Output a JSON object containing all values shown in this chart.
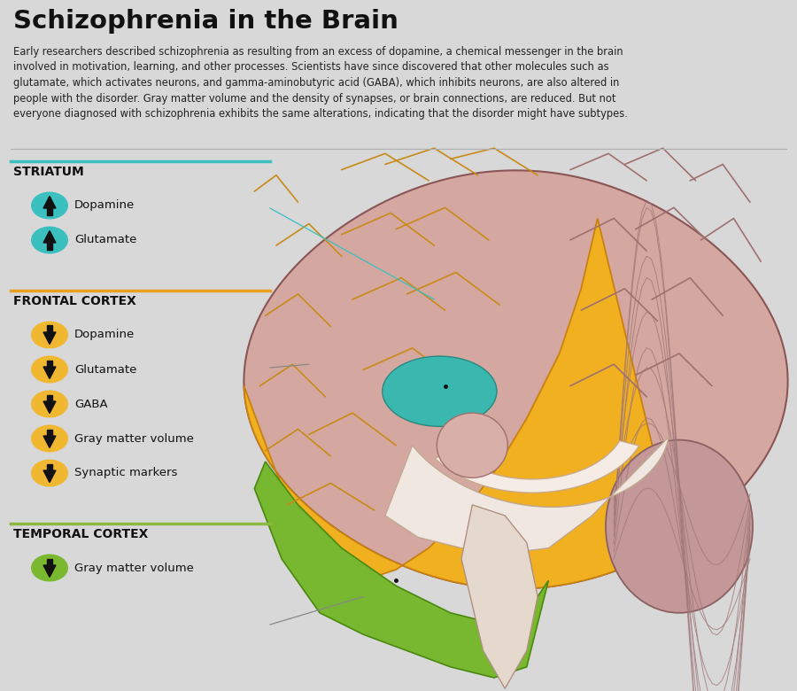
{
  "title": "Schizophrenia in the Brain",
  "body_text": "Early researchers described schizophrenia as resulting from an excess of dopamine, a chemical messenger in the brain\ninvolved in motivation, learning, and other processes. Scientists have since discovered that other molecules such as\nglutamate, which activates neurons, and gamma-aminobutyric acid (GABA), which inhibits neurons, are also altered in\npeople with the disorder. Gray matter volume and the density of synapses, or brain connections, are reduced. But not\neveryone diagnosed with schizophrenia exhibits the same alterations, indicating that the disorder might have subtypes.",
  "bg_color": "#d8d8d8",
  "title_color": "#111111",
  "body_color": "#222222",
  "sections": [
    {
      "name": "STRIATUM",
      "line_color": "#3bbfbf",
      "icon_color": "#3bbfbf",
      "arrow_up": true,
      "items": [
        "Dopamine",
        "Glutamate"
      ]
    },
    {
      "name": "FRONTAL CORTEX",
      "line_color": "#e8a020",
      "icon_color": "#f0b830",
      "arrow_up": false,
      "items": [
        "Dopamine",
        "Glutamate",
        "GABA",
        "Gray matter volume",
        "Synaptic markers"
      ]
    },
    {
      "name": "TEMPORAL CORTEX",
      "line_color": "#8ab840",
      "icon_color": "#7ab830",
      "arrow_up": false,
      "items": [
        "Gray matter volume"
      ]
    }
  ],
  "brain_colors": {
    "frontal_orange": "#f0b020",
    "frontal_edge": "#c88010",
    "temporal_green": "#78b830",
    "temporal_edge": "#4a8810",
    "striatum_teal": "#3ab8b0",
    "striatum_edge": "#2a8880",
    "other_pink": "#d4a8a0",
    "pink_edge": "#8a5555",
    "inner_white": "#f0e8e0",
    "inner_edge": "#c0a890",
    "corpus": "#f5ede5",
    "corpus_edge": "#c8a888",
    "thalamus_pink": "#d8b0a8",
    "thalamus_edge": "#a07070",
    "cerebellum": "#c49898",
    "cerebellum_edge": "#8a6060",
    "brainstem": "#e5d8cc",
    "brainstem_edge": "#b09080"
  }
}
